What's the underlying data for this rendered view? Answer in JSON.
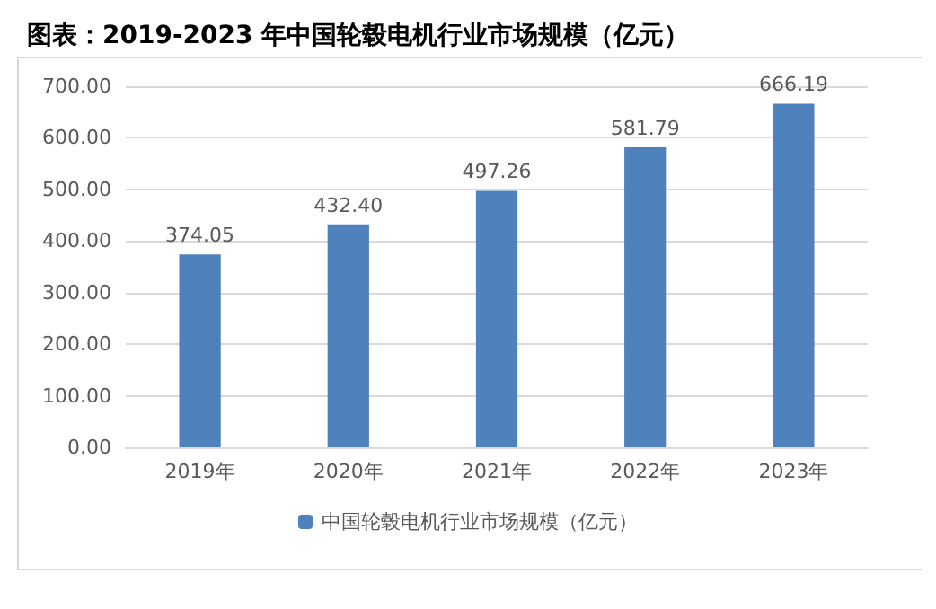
{
  "chart_data": {
    "type": "bar",
    "title": "图表：2019-2023 年中国轮毂电机行业市场规模（亿元）",
    "categories": [
      "2019年",
      "2020年",
      "2021年",
      "2022年",
      "2023年"
    ],
    "series": [
      {
        "name": "中国轮毂电机行业市场规模（亿元）",
        "color": "#4f81bd",
        "values": [
          374.05,
          432.4,
          497.26,
          581.79,
          666.19
        ],
        "value_labels": [
          "374.05",
          "432.40",
          "497.26",
          "581.79",
          "666.19"
        ]
      }
    ],
    "ylim": [
      0,
      700
    ],
    "yticks": [
      {
        "value": 0,
        "label": "0.00"
      },
      {
        "value": 100,
        "label": "100.00"
      },
      {
        "value": 200,
        "label": "200.00"
      },
      {
        "value": 300,
        "label": "300.00"
      },
      {
        "value": 400,
        "label": "400.00"
      },
      {
        "value": 500,
        "label": "500.00"
      },
      {
        "value": 600,
        "label": "600.00"
      },
      {
        "value": 700,
        "label": "700.00"
      }
    ],
    "grid": "y",
    "legend": "bottom"
  }
}
